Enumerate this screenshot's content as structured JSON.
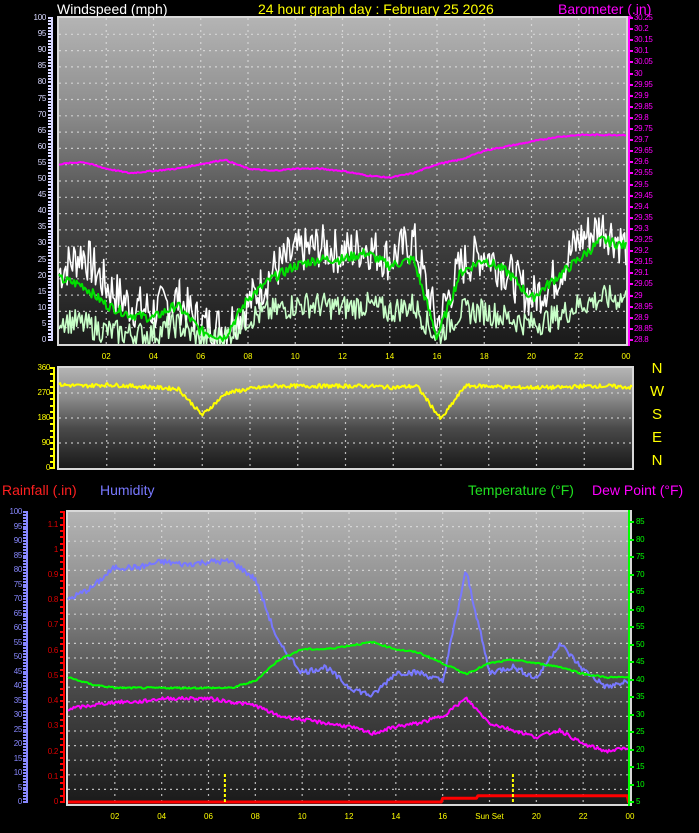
{
  "titles": {
    "windspeed": "Windspeed (mph)",
    "main": "24 hour graph day : February 25 2026",
    "barometer": "Barometer (.in)",
    "rainfall": "Rainfall (.in)",
    "humidity": "Humidity",
    "temperature": "Temperature (°F)",
    "dewpoint": "Dew Point (°F)"
  },
  "compass": [
    "N",
    "W",
    "S",
    "E",
    "N"
  ],
  "sun_label": "Sun Set",
  "colors": {
    "wind_gust": "#ffffff",
    "wind_avg_smooth": "#00e000",
    "wind_avg": "#c8ffc8",
    "barometer": "#ff00ff",
    "wind_dir": "#ffff00",
    "rain": "#ff0000",
    "humidity": "#7878ff",
    "temperature": "#00ff00",
    "dewpoint": "#ff00ff"
  },
  "chart_data": [
    {
      "type": "line",
      "title": "Windspeed (mph) / Barometer (.in)",
      "x": [
        "00",
        "02",
        "04",
        "06",
        "08",
        "10",
        "12",
        "14",
        "16",
        "18",
        "20",
        "22",
        "00"
      ],
      "ylabel": "Windspeed (mph)",
      "ylim": [
        0,
        100
      ],
      "y_ticks": [
        0,
        5,
        10,
        15,
        20,
        25,
        30,
        35,
        40,
        45,
        50,
        55,
        60,
        65,
        70,
        75,
        80,
        85,
        90,
        95,
        100
      ],
      "y2label": "Barometer (.in)",
      "y2lim": [
        28.8,
        30.25
      ],
      "y2_ticks": [
        "28.8",
        "28.85",
        "28.9",
        "28.95",
        "29",
        "29.05",
        "29.1",
        "29.15",
        "29.2",
        "29.25",
        "29.3",
        "29.35",
        "29.4",
        "29.45",
        "29.5",
        "29.55",
        "29.6",
        "29.65",
        "29.7",
        "29.75",
        "29.8",
        "29.85",
        "29.9",
        "29.95",
        "30",
        "30.05",
        "30.1",
        "30.15",
        "30.2",
        "30.25"
      ],
      "grid": true,
      "hours": [
        0,
        1,
        2,
        3,
        4,
        5,
        6,
        7,
        8,
        9,
        10,
        11,
        12,
        13,
        14,
        15,
        16,
        17,
        18,
        19,
        20,
        21,
        22,
        23,
        24
      ],
      "series": [
        {
          "name": "Wind gust (mph)",
          "values": [
            22,
            28,
            18,
            12,
            10,
            14,
            6,
            5,
            12,
            22,
            28,
            30,
            28,
            30,
            26,
            32,
            6,
            24,
            28,
            22,
            14,
            20,
            32,
            36,
            30
          ]
        },
        {
          "name": "Wind average smoothed (mph)",
          "values": [
            20,
            18,
            12,
            9,
            8,
            12,
            4,
            2,
            14,
            20,
            24,
            26,
            26,
            28,
            24,
            26,
            2,
            22,
            26,
            22,
            14,
            20,
            26,
            32,
            30
          ]
        },
        {
          "name": "Wind average (mph)",
          "values": [
            8,
            6,
            4,
            3,
            3,
            6,
            1,
            2,
            8,
            10,
            12,
            12,
            11,
            12,
            10,
            12,
            2,
            10,
            10,
            8,
            6,
            8,
            12,
            14,
            14
          ]
        },
        {
          "name": "Barometer (.in)",
          "values": [
            29.6,
            29.61,
            29.58,
            29.56,
            29.57,
            29.58,
            29.6,
            29.62,
            29.58,
            29.57,
            29.58,
            29.58,
            29.57,
            29.55,
            29.54,
            29.56,
            29.6,
            29.62,
            29.66,
            29.68,
            29.7,
            29.72,
            29.73,
            29.73,
            29.73
          ]
        }
      ]
    },
    {
      "type": "line",
      "title": "Wind Direction",
      "x": [
        "00",
        "02",
        "04",
        "06",
        "08",
        "10",
        "12",
        "14",
        "16",
        "18",
        "20",
        "22",
        "00"
      ],
      "ylim": [
        0,
        360
      ],
      "y_ticks": [
        0,
        90,
        180,
        270,
        360
      ],
      "grid": true,
      "hours": [
        0,
        1,
        2,
        3,
        4,
        5,
        6,
        7,
        8,
        9,
        10,
        11,
        12,
        13,
        14,
        15,
        16,
        17,
        18,
        19,
        20,
        21,
        22,
        23,
        24
      ],
      "series": [
        {
          "name": "Wind direction (deg)",
          "values": [
            300,
            295,
            300,
            295,
            290,
            285,
            190,
            270,
            285,
            295,
            295,
            295,
            295,
            295,
            290,
            295,
            175,
            295,
            295,
            290,
            290,
            290,
            295,
            295,
            290
          ]
        }
      ]
    },
    {
      "type": "line",
      "title": "Rainfall (.in) / Humidity / Temperature (°F) / Dew Point (°F)",
      "x": [
        "00",
        "02",
        "04",
        "06",
        "08",
        "10",
        "12",
        "14",
        "16",
        "Sun Set",
        "20",
        "22",
        "00"
      ],
      "ylabel": "Humidity",
      "ylim": [
        0,
        100
      ],
      "y_ticks": [
        0,
        5,
        10,
        15,
        20,
        25,
        30,
        35,
        40,
        45,
        50,
        55,
        60,
        65,
        70,
        75,
        80,
        85,
        90,
        95,
        100
      ],
      "rain_ylim": [
        0,
        1.15
      ],
      "rain_ticks": [
        "0",
        "0.1",
        "0.2",
        "0.3",
        "0.4",
        "0.5",
        "0.6",
        "0.7",
        "0.8",
        "0.9",
        "1",
        "1.1"
      ],
      "y2lim": [
        5,
        88
      ],
      "y2_ticks": [
        5,
        10,
        15,
        20,
        25,
        30,
        35,
        40,
        45,
        50,
        55,
        60,
        65,
        70,
        75,
        80,
        85
      ],
      "grid": true,
      "annotations": [
        "Sun Set marker near 19:00",
        "Sunrise marker near 06:40"
      ],
      "hours": [
        0,
        1,
        2,
        3,
        4,
        5,
        6,
        7,
        8,
        9,
        10,
        11,
        12,
        13,
        14,
        15,
        16,
        17,
        18,
        19,
        20,
        21,
        22,
        23,
        24
      ],
      "series": [
        {
          "name": "Humidity (%)",
          "values": [
            70,
            74,
            81,
            81,
            83,
            82,
            83,
            83,
            77,
            55,
            45,
            47,
            40,
            37,
            45,
            45,
            42,
            80,
            45,
            47,
            43,
            55,
            46,
            40,
            42
          ]
        },
        {
          "name": "Temperature (°F)",
          "values": [
            41,
            39,
            38,
            38,
            38,
            38,
            38,
            38,
            40,
            46,
            49,
            49,
            50,
            51,
            49,
            48,
            45,
            42,
            45,
            46,
            45,
            44,
            42,
            41,
            41
          ]
        },
        {
          "name": "Dew Point (°F)",
          "values": [
            32,
            33,
            34,
            34,
            35,
            35,
            35,
            34,
            33,
            30,
            29,
            28,
            27,
            25,
            27,
            28,
            30,
            35,
            28,
            26,
            24,
            26,
            22,
            20,
            21
          ]
        },
        {
          "name": "Rainfall (.in)",
          "values": [
            0,
            0,
            0,
            0,
            0,
            0,
            0,
            0,
            0,
            0,
            0,
            0,
            0,
            0,
            0,
            0,
            0,
            0.02,
            0.03,
            0.03,
            0.03,
            0.03,
            0.03,
            0.03,
            0.0
          ]
        }
      ]
    }
  ]
}
